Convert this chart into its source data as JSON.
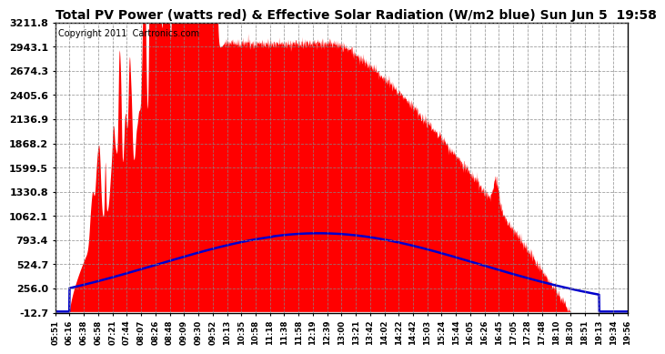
{
  "title": "Total PV Power (watts red) & Effective Solar Radiation (W/m2 blue) Sun Jun 5  19:58",
  "copyright_text": "Copyright 2011  Cartronics.com",
  "yticks": [
    3211.8,
    2943.1,
    2674.3,
    2405.6,
    2136.9,
    1868.2,
    1599.5,
    1330.8,
    1062.1,
    793.4,
    524.7,
    256.0,
    -12.7
  ],
  "ymin": -12.7,
  "ymax": 3211.8,
  "bg_color": "#ffffff",
  "plot_bg_color": "#ffffff",
  "red_color": "#ff0000",
  "blue_color": "#0000cc",
  "title_fontsize": 10,
  "copyright_fontsize": 7,
  "xtick_fontsize": 6.2,
  "ytick_fontsize": 8,
  "xtick_labels": [
    "05:51",
    "06:16",
    "06:38",
    "06:58",
    "07:21",
    "07:44",
    "08:07",
    "08:26",
    "08:48",
    "09:09",
    "09:30",
    "09:52",
    "10:13",
    "10:35",
    "10:58",
    "11:18",
    "11:38",
    "11:58",
    "12:19",
    "12:39",
    "13:00",
    "13:21",
    "13:42",
    "14:02",
    "14:22",
    "14:42",
    "15:03",
    "15:24",
    "15:44",
    "16:05",
    "16:26",
    "16:45",
    "17:05",
    "17:28",
    "17:48",
    "18:10",
    "18:30",
    "18:51",
    "19:13",
    "19:34",
    "19:56"
  ]
}
